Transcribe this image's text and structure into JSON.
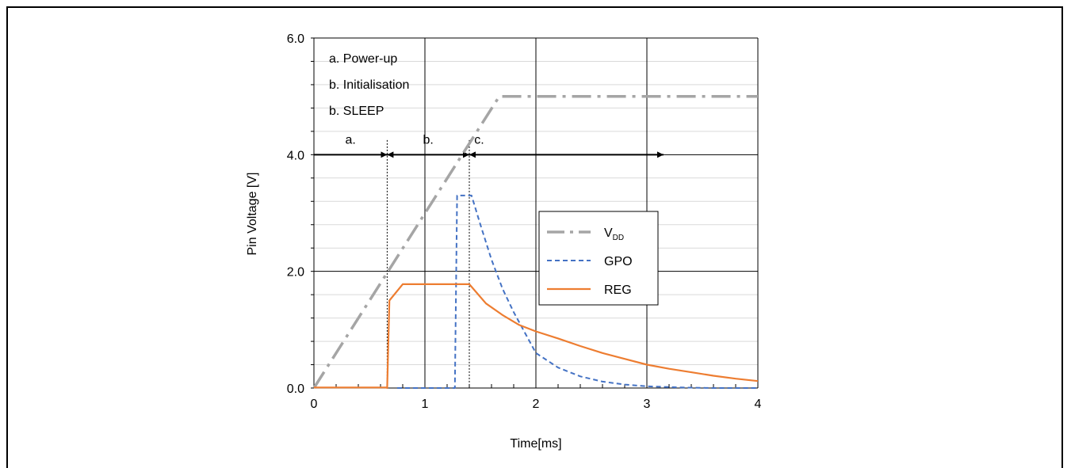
{
  "chart_data": {
    "type": "line",
    "xlabel": "Time[ms]",
    "ylabel": "Pin Voltage [V]",
    "xlim": [
      0,
      4
    ],
    "ylim": [
      0,
      6
    ],
    "x_ticks": [
      "0",
      "1",
      "2",
      "3",
      "4"
    ],
    "y_ticks": [
      "0.0",
      "2.0",
      "4.0",
      "6.0"
    ],
    "grid": true,
    "legend_position": "right",
    "series": [
      {
        "name": "VDD",
        "name_main": "V",
        "name_sub": "DD",
        "color": "#a5a5a5",
        "style": "dash-dot",
        "points": [
          [
            0,
            0
          ],
          [
            1.67,
            5.0
          ],
          [
            4.0,
            5.0
          ]
        ]
      },
      {
        "name": "GPO",
        "color": "#4472c4",
        "style": "dashed",
        "points": [
          [
            0.75,
            0
          ],
          [
            1.27,
            0
          ],
          [
            1.29,
            3.3
          ],
          [
            1.42,
            3.3
          ],
          [
            1.5,
            2.8
          ],
          [
            1.6,
            2.2
          ],
          [
            1.7,
            1.7
          ],
          [
            1.8,
            1.3
          ],
          [
            1.9,
            0.95
          ],
          [
            2.0,
            0.6
          ],
          [
            2.2,
            0.35
          ],
          [
            2.4,
            0.2
          ],
          [
            2.6,
            0.11
          ],
          [
            2.8,
            0.06
          ],
          [
            3.0,
            0.03
          ],
          [
            3.3,
            0.01
          ],
          [
            3.6,
            0.0
          ],
          [
            4.0,
            0.0
          ]
        ]
      },
      {
        "name": "REG",
        "color": "#ed7d31",
        "style": "solid",
        "points": [
          [
            0,
            0.01
          ],
          [
            0.65,
            0.01
          ],
          [
            0.66,
            0.0
          ],
          [
            0.68,
            1.5
          ],
          [
            0.8,
            1.78
          ],
          [
            1.4,
            1.78
          ],
          [
            1.55,
            1.45
          ],
          [
            1.7,
            1.25
          ],
          [
            1.85,
            1.08
          ],
          [
            2.0,
            0.97
          ],
          [
            2.2,
            0.85
          ],
          [
            2.4,
            0.72
          ],
          [
            2.6,
            0.6
          ],
          [
            2.8,
            0.5
          ],
          [
            3.0,
            0.4
          ],
          [
            3.2,
            0.33
          ],
          [
            3.4,
            0.27
          ],
          [
            3.6,
            0.21
          ],
          [
            3.8,
            0.16
          ],
          [
            4.0,
            0.12
          ]
        ]
      }
    ],
    "annotations": {
      "phases": [
        {
          "label": "a. Power-up"
        },
        {
          "label": "b. Initialisation"
        },
        {
          "label": "b. SLEEP"
        }
      ],
      "segments": [
        {
          "label": "a.",
          "x_start": 0,
          "x_end": 0.66
        },
        {
          "label": "b.",
          "x_start": 0.66,
          "x_end": 1.4
        },
        {
          "label": "c.",
          "x_start": 1.4,
          "x_end": 3.15
        }
      ],
      "arrow_y": 4.0,
      "markers_x": [
        0.66,
        1.4
      ]
    }
  }
}
